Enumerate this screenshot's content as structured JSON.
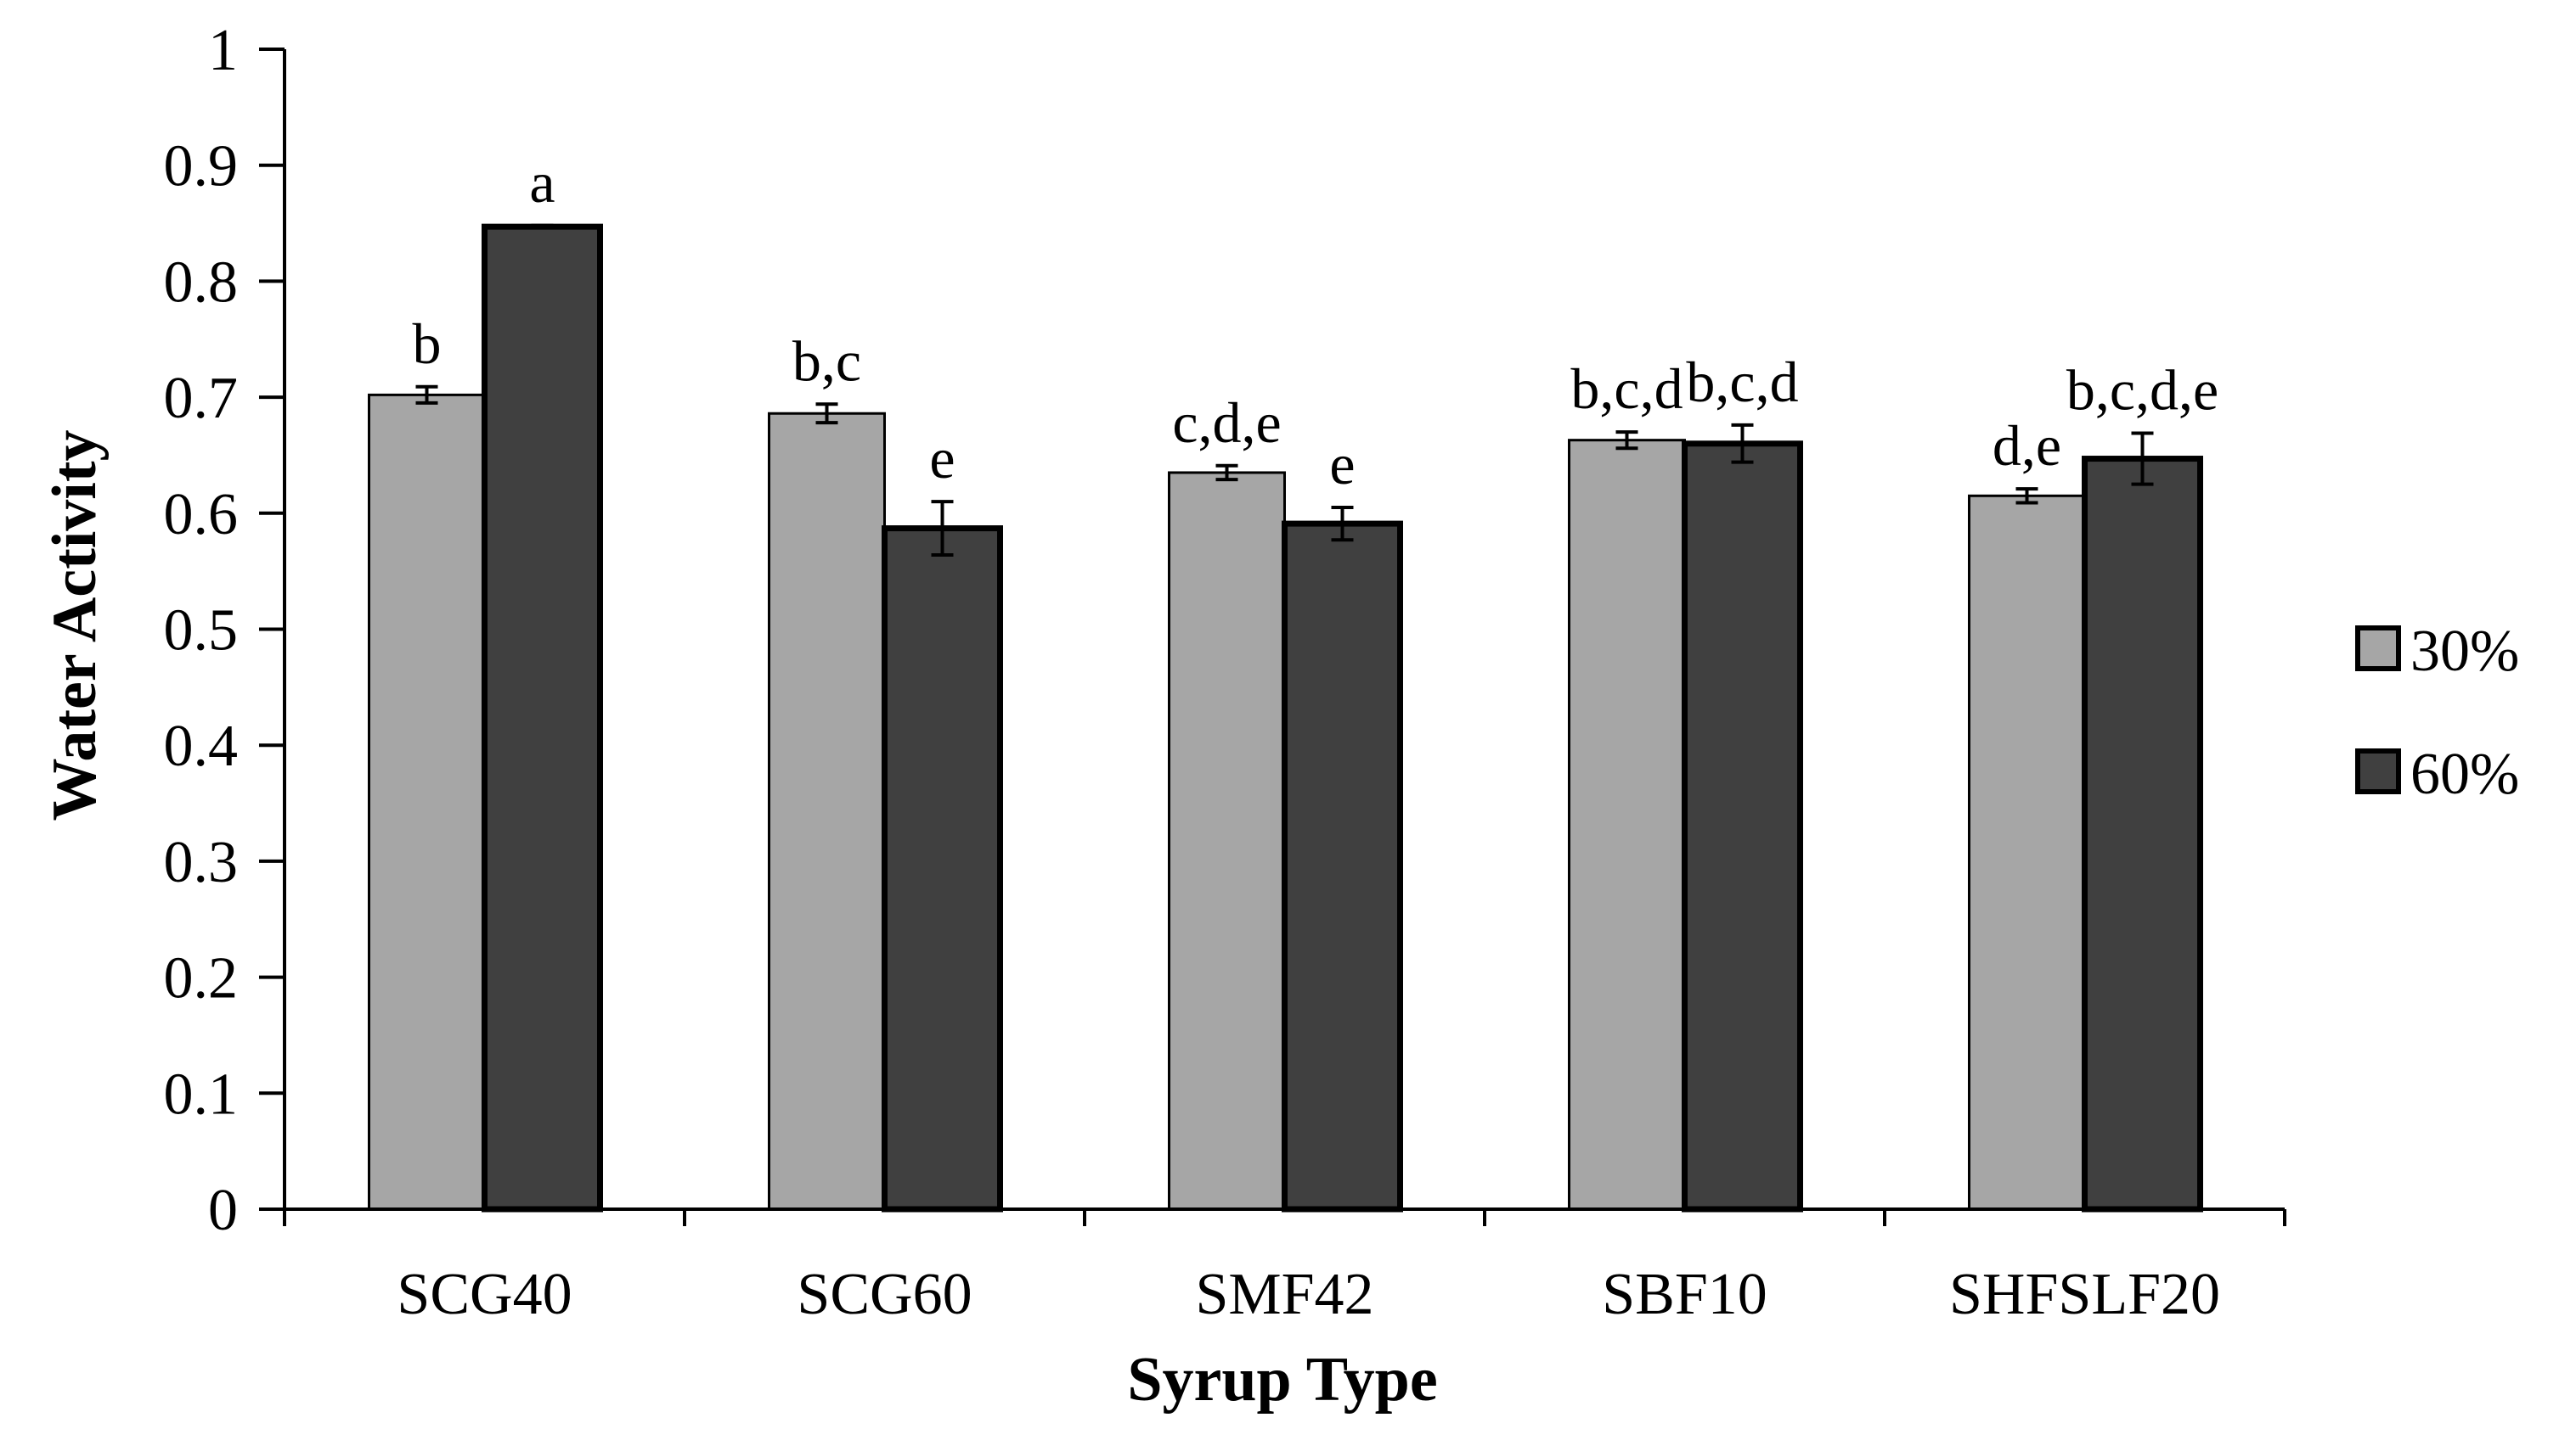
{
  "chart_data": {
    "type": "bar",
    "title": "",
    "xlabel": "Syrup Type",
    "ylabel": "Water Activity",
    "ylim": [
      0,
      1
    ],
    "yticks": [
      0,
      0.1,
      0.2,
      0.3,
      0.4,
      0.5,
      0.6,
      0.7,
      0.8,
      0.9,
      1
    ],
    "ytick_labels": [
      "0",
      "0.1",
      "0.2",
      "0.3",
      "0.4",
      "0.5",
      "0.6",
      "0.7",
      "0.8",
      "0.9",
      "1"
    ],
    "grid": false,
    "legend_position": "right",
    "categories": [
      "SCG40",
      "SCG60",
      "SMF42",
      "SBF10",
      "SHFSLF20"
    ],
    "series": [
      {
        "name": "30%",
        "color": "#a6a6a6",
        "values": [
          0.702,
          0.686,
          0.635,
          0.663,
          0.615
        ],
        "errors": [
          0.007,
          0.008,
          0.006,
          0.007,
          0.006
        ],
        "significance": [
          "b",
          "b,c",
          "c,d,e",
          "b,c,d",
          "d,e"
        ]
      },
      {
        "name": "60%",
        "color": "#404040",
        "values": [
          0.847,
          0.587,
          0.591,
          0.66,
          0.647
        ],
        "errors": [
          0.001,
          0.023,
          0.014,
          0.016,
          0.022
        ],
        "significance": [
          "a",
          "e",
          "e",
          "b,c,d",
          "b,c,d,e"
        ]
      }
    ]
  }
}
